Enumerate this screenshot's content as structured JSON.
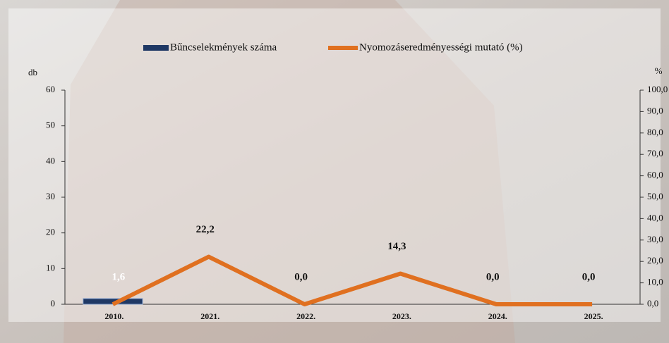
{
  "chart_data": {
    "type": "bar-line",
    "categories": [
      "2010.",
      "2021.",
      "2022.",
      "2023.",
      "2024.",
      "2025."
    ],
    "series": [
      {
        "name": "Bűncselekmények száma",
        "color": "#1f3864",
        "type": "bar",
        "values": [
          1.6,
          null,
          null,
          null,
          null,
          null
        ],
        "value_labels": [
          "1,6",
          null,
          null,
          null,
          null,
          null
        ]
      },
      {
        "name": "Nyomozáseredményességi mutató (%)",
        "color": "#e07020",
        "type": "line",
        "axis": "y2",
        "values": [
          0,
          22.2,
          0,
          14.3,
          0,
          0
        ],
        "value_labels": [
          null,
          "22,2",
          "0,0",
          "14,3",
          "0,0",
          "0,0"
        ]
      }
    ],
    "ylabel": "db",
    "y2label": "%",
    "ylim": [
      0,
      60
    ],
    "yticks": [
      0,
      10,
      20,
      30,
      40,
      50,
      60
    ],
    "y2lim": [
      0,
      100
    ],
    "y2ticks": [
      {
        "value": 0,
        "label": "0,0"
      },
      {
        "value": 10,
        "label": "10,0"
      },
      {
        "value": 20,
        "label": "20,0"
      },
      {
        "value": 30,
        "label": "30,0"
      },
      {
        "value": 40,
        "label": "40,0"
      },
      {
        "value": 50,
        "label": "50,0"
      },
      {
        "value": 60,
        "label": "60,0"
      },
      {
        "value": 70,
        "label": "70,0"
      },
      {
        "value": 80,
        "label": "80,0"
      },
      {
        "value": 90,
        "label": "90,0"
      },
      {
        "value": 100,
        "label": "100,0"
      }
    ]
  }
}
